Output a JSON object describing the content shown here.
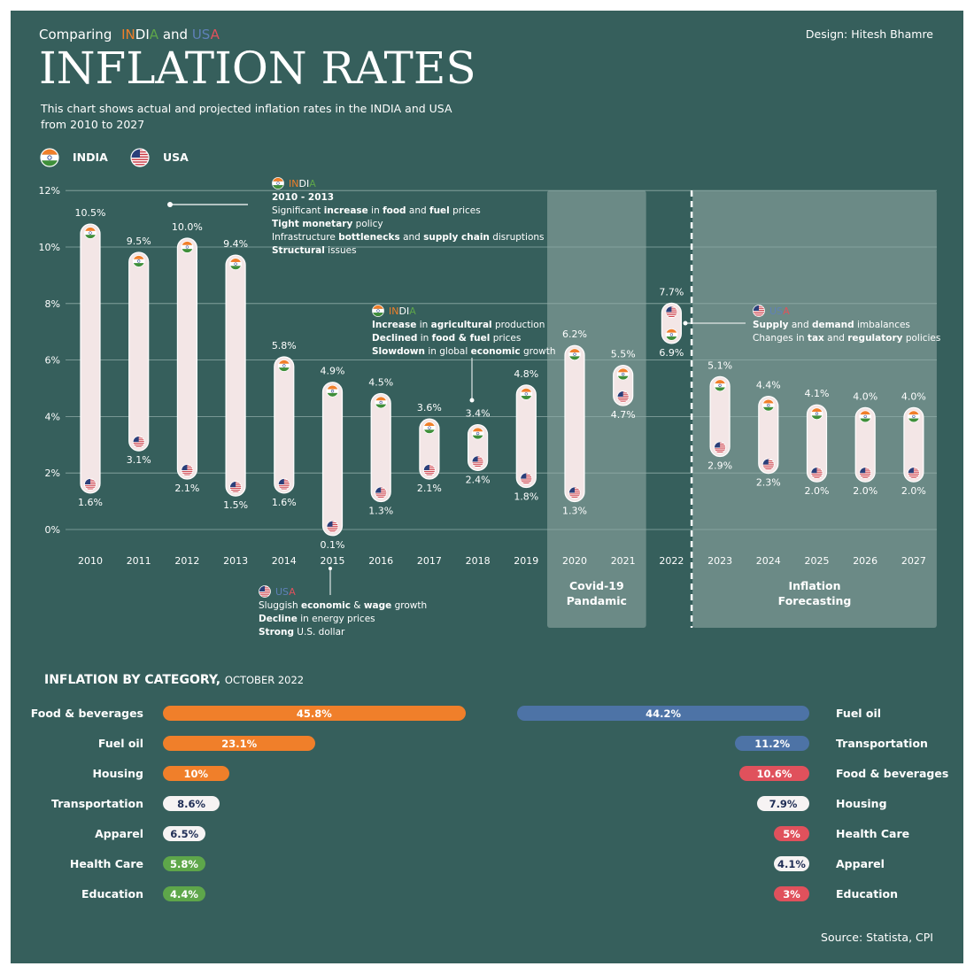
{
  "header": {
    "subtitle_prefix": "Comparing",
    "subtitle_india_1": "IN",
    "subtitle_india_2": "DI",
    "subtitle_india_3": "A",
    "subtitle_and": "and",
    "subtitle_usa_1": "US",
    "subtitle_usa_2": "A",
    "title": "INFLATION RATES",
    "credit": "Design: Hitesh Bhamre",
    "description_line1": "This chart shows actual and projected inflation rates in the INDIA and USA",
    "description_line2": "from 2010 to 2027"
  },
  "legend": {
    "india": "INDIA",
    "usa": "USA"
  },
  "colors": {
    "background": "#365f5c",
    "india_orange": "#f07f2a",
    "india_green": "#5ea64a",
    "usa_blue": "#5f81b8",
    "usa_red": "#e0515c",
    "pill": "#f3e6e6"
  },
  "icons": {
    "india": "india-flag-icon",
    "usa": "usa-flag-icon"
  },
  "chart_data": {
    "type": "range-dot",
    "title": "INFLATION RATES",
    "ylim": [
      0,
      12
    ],
    "yticks": [
      "0%",
      "2%",
      "4%",
      "6%",
      "8%",
      "10%",
      "12%"
    ],
    "grid": true,
    "categories": [
      "2010",
      "2011",
      "2012",
      "2013",
      "2014",
      "2015",
      "2016",
      "2017",
      "2018",
      "2019",
      "2020",
      "2021",
      "2022",
      "2023",
      "2024",
      "2025",
      "2026",
      "2027"
    ],
    "series": [
      {
        "name": "INDIA",
        "values": [
          10.5,
          9.5,
          10.0,
          9.4,
          5.8,
          4.9,
          4.5,
          3.6,
          3.4,
          4.8,
          6.2,
          5.5,
          6.9,
          5.1,
          4.4,
          4.1,
          4.0,
          4.0
        ],
        "labels": [
          "10.5%",
          "9.5%",
          "10.0%",
          "9.4%",
          "5.8%",
          "4.9%",
          "4.5%",
          "3.6%",
          "3.4%",
          "4.8%",
          "6.2%",
          "5.5%",
          "6.9%",
          "5.1%",
          "4.4%",
          "4.1%",
          "4.0%",
          "4.0%"
        ]
      },
      {
        "name": "USA",
        "values": [
          1.6,
          3.1,
          2.1,
          1.5,
          1.6,
          0.1,
          1.3,
          2.1,
          2.4,
          1.8,
          1.3,
          4.7,
          7.7,
          2.9,
          2.3,
          2.0,
          2.0,
          2.0
        ],
        "labels": [
          "1.6%",
          "3.1%",
          "2.1%",
          "1.5%",
          "1.6%",
          "0.1%",
          "1.3%",
          "2.1%",
          "2.4%",
          "1.8%",
          "1.3%",
          "4.7%",
          "7.7%",
          "2.9%",
          "2.3%",
          "2.0%",
          "2.0%",
          "2.0%"
        ]
      }
    ],
    "regions": [
      {
        "label_line1": "Covid-19",
        "label_line2": "Pandamic",
        "from": "2020",
        "to": "2021"
      },
      {
        "label_line1": "Inflation",
        "label_line2": "Forecasting",
        "from": "2023",
        "to": "2027"
      }
    ],
    "annotations": [
      {
        "country": "INDIA",
        "country_1": "IN",
        "country_2": "DI",
        "country_3": "A",
        "period": "2010 - 2013",
        "lines": [
          [
            {
              "t": "Significant ",
              "b": false
            },
            {
              "t": "increase",
              "b": true
            },
            {
              "t": " in ",
              "b": false
            },
            {
              "t": "food",
              "b": true
            },
            {
              "t": " and ",
              "b": false
            },
            {
              "t": "fuel",
              "b": true
            },
            {
              "t": " prices",
              "b": false
            }
          ],
          [
            {
              "t": "Tight monetary",
              "b": true
            },
            {
              "t": " policy",
              "b": false
            }
          ],
          [
            {
              "t": "Infrastructure ",
              "b": false
            },
            {
              "t": "bottlenecks",
              "b": true
            },
            {
              "t": " and ",
              "b": false
            },
            {
              "t": "supply chain",
              "b": true
            },
            {
              "t": " disruptions",
              "b": false
            }
          ],
          [
            {
              "t": "Structural",
              "b": true
            },
            {
              "t": " issues",
              "b": false
            }
          ]
        ]
      },
      {
        "country": "INDIA",
        "country_1": "IN",
        "country_2": "DI",
        "country_3": "A",
        "lines": [
          [
            {
              "t": "Increase",
              "b": true
            },
            {
              "t": " in ",
              "b": false
            },
            {
              "t": "agricultural",
              "b": true
            },
            {
              "t": " production",
              "b": false
            }
          ],
          [
            {
              "t": "Declined",
              "b": true
            },
            {
              "t": " in ",
              "b": false
            },
            {
              "t": "food & fuel",
              "b": true
            },
            {
              "t": " prices",
              "b": false
            }
          ],
          [
            {
              "t": "Slowdown",
              "b": true
            },
            {
              "t": " in global ",
              "b": false
            },
            {
              "t": "economic",
              "b": true
            },
            {
              "t": " growth",
              "b": false
            }
          ]
        ]
      },
      {
        "country": "USA",
        "country_1": "US",
        "country_2": "A",
        "lines": [
          [
            {
              "t": "Supply",
              "b": true
            },
            {
              "t": " and ",
              "b": false
            },
            {
              "t": "demand",
              "b": true
            },
            {
              "t": " imbalances",
              "b": false
            }
          ],
          [
            {
              "t": "Changes in ",
              "b": false
            },
            {
              "t": "tax",
              "b": true
            },
            {
              "t": " and ",
              "b": false
            },
            {
              "t": "regulatory",
              "b": true
            },
            {
              "t": " policies",
              "b": false
            }
          ]
        ]
      },
      {
        "country": "USA",
        "country_1": "US",
        "country_2": "A",
        "lines": [
          [
            {
              "t": "Sluggish ",
              "b": false
            },
            {
              "t": "economic",
              "b": true
            },
            {
              "t": " & ",
              "b": false
            },
            {
              "t": "wage",
              "b": true
            },
            {
              "t": " growth",
              "b": false
            }
          ],
          [
            {
              "t": "Decline",
              "b": true
            },
            {
              "t": " in energy prices",
              "b": false
            }
          ],
          [
            {
              "t": "Strong",
              "b": true
            },
            {
              "t": " U.S. dollar",
              "b": false
            }
          ]
        ]
      }
    ]
  },
  "categories_section": {
    "title": "INFLATION BY CATEGORY,",
    "subtitle": "OCTOBER 2022",
    "india": [
      {
        "label": "Food & beverages",
        "value": 45.8,
        "display": "45.8%",
        "color": "#f07f2a",
        "text_color": "#ffffff"
      },
      {
        "label": "Fuel oil",
        "value": 23.1,
        "display": "23.1%",
        "color": "#f07f2a",
        "text_color": "#ffffff"
      },
      {
        "label": "Housing",
        "value": 10,
        "display": "10%",
        "color": "#f07f2a",
        "text_color": "#ffffff"
      },
      {
        "label": "Transportation",
        "value": 8.6,
        "display": "8.6%",
        "color": "#f6f3f3",
        "text_color": "#1f2d55"
      },
      {
        "label": "Apparel",
        "value": 6.5,
        "display": "6.5%",
        "color": "#f6f3f3",
        "text_color": "#1f2d55"
      },
      {
        "label": "Health Care",
        "value": 5.8,
        "display": "5.8%",
        "color": "#5ea64a",
        "text_color": "#ffffff"
      },
      {
        "label": "Education",
        "value": 4.4,
        "display": "4.4%",
        "color": "#5ea64a",
        "text_color": "#ffffff"
      }
    ],
    "usa": [
      {
        "label": "Fuel oil",
        "value": 44.2,
        "display": "44.2%",
        "color": "#4d73a6",
        "text_color": "#ffffff"
      },
      {
        "label": "Transportation",
        "value": 11.2,
        "display": "11.2%",
        "color": "#4d73a6",
        "text_color": "#ffffff"
      },
      {
        "label": "Food & beverages",
        "value": 10.6,
        "display": "10.6%",
        "color": "#e0515c",
        "text_color": "#ffffff"
      },
      {
        "label": "Housing",
        "value": 7.9,
        "display": "7.9%",
        "color": "#f6f3f3",
        "text_color": "#1f2d55"
      },
      {
        "label": "Health Care",
        "value": 5,
        "display": "5%",
        "color": "#e0515c",
        "text_color": "#ffffff"
      },
      {
        "label": "Apparel",
        "value": 4.1,
        "display": "4.1%",
        "color": "#f6f3f3",
        "text_color": "#1f2d55"
      },
      {
        "label": "Education",
        "value": 3,
        "display": "3%",
        "color": "#e0515c",
        "text_color": "#ffffff"
      }
    ]
  },
  "footer": {
    "source": "Source: Statista, CPI"
  }
}
